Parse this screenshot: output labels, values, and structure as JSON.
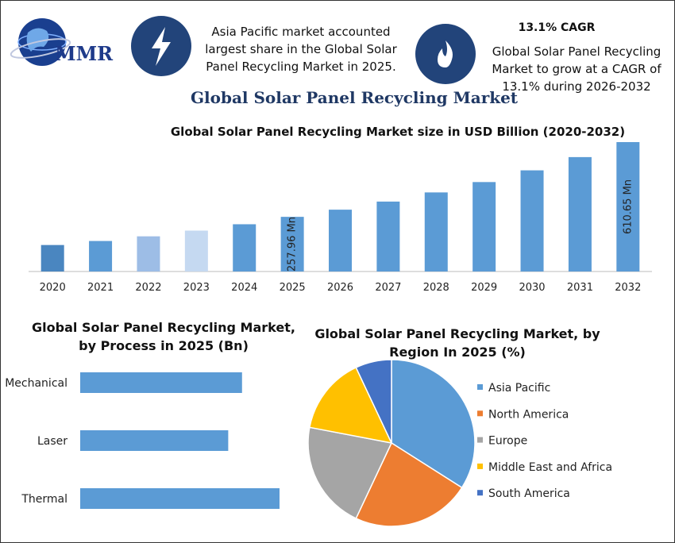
{
  "header": {
    "logo": "MMR",
    "info_left": "Asia Pacific market accounted largest share in the Global Solar Panel Recycling Market in 2025.",
    "info_right_title": "13.1% CAGR",
    "info_right": "Global Solar Panel Recycling Market to grow at a CAGR of 13.1% during 2026-2032",
    "title": "Global Solar Panel Recycling Market"
  },
  "chart_data": [
    {
      "type": "bar",
      "title": "Global Solar Panel Recycling Market size in USD Billion (2020-2032)",
      "categories": [
        "2020",
        "2021",
        "2022",
        "2023",
        "2024",
        "2025",
        "2026",
        "2027",
        "2028",
        "2029",
        "2030",
        "2031",
        "2032"
      ],
      "values": [
        125,
        144,
        166,
        193,
        223,
        257.96,
        291.75,
        329.97,
        373.2,
        422.1,
        477.4,
        539.9,
        610.65
      ],
      "value_labels": [
        null,
        null,
        null,
        null,
        null,
        "257.96 Mn",
        null,
        null,
        null,
        null,
        null,
        null,
        "610.65 Mn"
      ],
      "colors": [
        "#4a86c0",
        "#5b9bd5",
        "#9dbde6",
        "#c5d9f1",
        "#5b9bd5",
        "#5b9bd5",
        "#5b9bd5",
        "#5b9bd5",
        "#5b9bd5",
        "#5b9bd5",
        "#5b9bd5",
        "#5b9bd5",
        "#5b9bd5"
      ]
    },
    {
      "type": "bar",
      "orientation": "horizontal",
      "title": "Global Solar Panel Recycling Market, by Process in 2025 (Bn)",
      "categories": [
        "Mechanical",
        "Laser",
        "Thermal"
      ],
      "values": [
        0.082,
        0.075,
        0.101
      ],
      "color": "#5b9bd5"
    },
    {
      "type": "pie",
      "title": "Global Solar Panel Recycling Market, by Region In 2025 (%)",
      "categories": [
        "Asia Pacific",
        "North America",
        "Europe",
        "Middle East and Africa",
        "South America"
      ],
      "values": [
        34,
        23,
        21,
        15,
        7
      ],
      "colors": [
        "#5b9bd5",
        "#ed7d31",
        "#a5a5a5",
        "#ffc000",
        "#4472c4"
      ]
    }
  ]
}
